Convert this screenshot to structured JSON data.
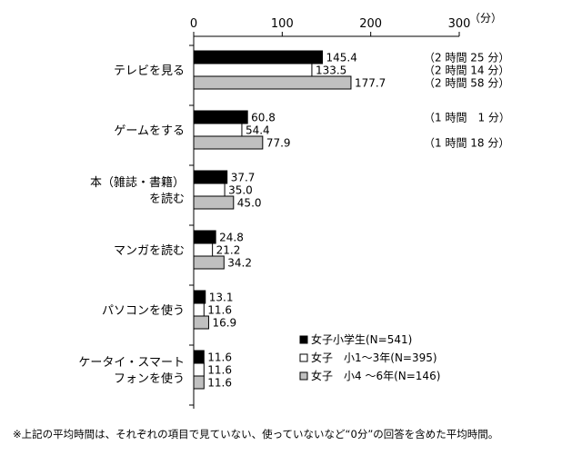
{
  "chart_data": {
    "type": "bar",
    "orientation": "horizontal",
    "unit_label": "（分）",
    "xlim": [
      0,
      300
    ],
    "x_ticks": [
      0,
      100,
      200,
      300
    ],
    "grid": false,
    "legend_position": "bottom-right",
    "categories": [
      [
        "テレビを見る"
      ],
      [
        "ゲームをする"
      ],
      [
        "本（雑誌・書籍）",
        "を読む"
      ],
      [
        "マンガを読む"
      ],
      [
        "パソコンを使う"
      ],
      [
        "ケータイ・スマート",
        "フォンを使う"
      ]
    ],
    "series": [
      {
        "name": "女子小学生(N=541)",
        "color": "#000000",
        "values": [
          145.4,
          60.8,
          37.7,
          24.8,
          13.1,
          11.6
        ]
      },
      {
        "name": "女子　小1～3年(N=395)",
        "color": "#ffffff",
        "values": [
          133.5,
          54.4,
          35.0,
          21.2,
          11.6,
          11.6
        ]
      },
      {
        "name": "女子　小4 ～6年(N=146)",
        "color": "#c0c0c0",
        "values": [
          177.7,
          77.9,
          45.0,
          34.2,
          16.9,
          11.6
        ]
      }
    ],
    "value_labels": [
      [
        "145.4",
        "60.8",
        "37.7",
        "24.8",
        "13.1",
        "11.6"
      ],
      [
        "133.5",
        "54.4",
        "35.0",
        "21.2",
        "11.6",
        "11.6"
      ],
      [
        "177.7",
        "77.9",
        "45.0",
        "34.2",
        "16.9",
        "11.6"
      ]
    ],
    "annotations": [
      {
        "category": 0,
        "series": 0,
        "text": "（2 時間 25 分）"
      },
      {
        "category": 0,
        "series": 1,
        "text": "（2 時間 14 分）"
      },
      {
        "category": 0,
        "series": 2,
        "text": "（2 時間 58 分）"
      },
      {
        "category": 1,
        "series": 0,
        "text": "（1 時間　1 分）"
      },
      {
        "category": 1,
        "series": 2,
        "text": "（1 時間 18 分）"
      }
    ]
  },
  "footnote": "※上記の平均時間は、それぞれの項目で見ていない、使っていないなど“0分”の回答を含めた平均時間。"
}
